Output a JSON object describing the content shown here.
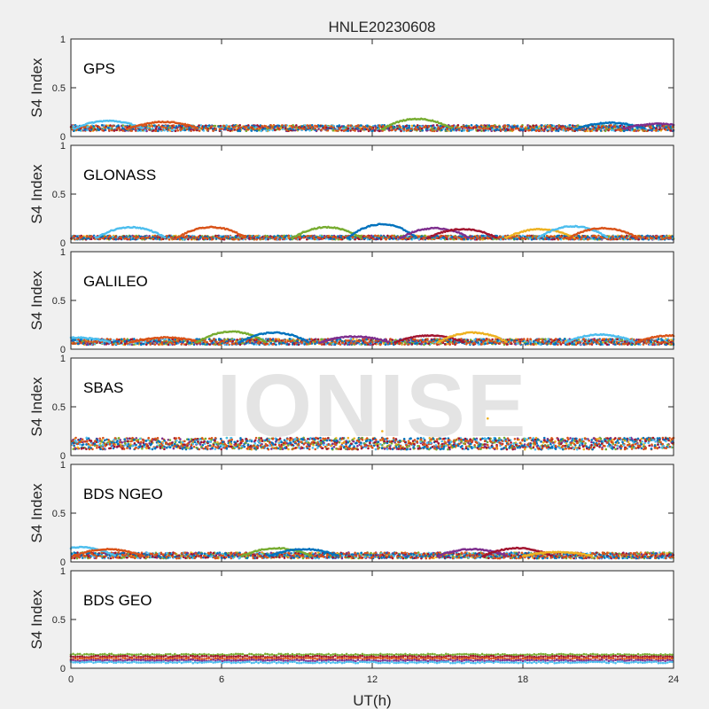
{
  "figure": {
    "title": "HNLE20230608",
    "xlabel": "UT(h)",
    "watermark": "IONISE",
    "background": "#f0f0f0"
  },
  "chart_data": [
    {
      "type": "scatter",
      "label": "GPS",
      "ylabel": "S4 Index",
      "xlim": [
        0,
        24
      ],
      "ylim": [
        0,
        1
      ],
      "xticks": [
        0,
        6,
        12,
        18,
        24
      ],
      "yticks": [
        0,
        0.5,
        1
      ],
      "baseline": 0.08,
      "spread": 0.03,
      "arcs": [
        [
          1.5,
          0.16
        ],
        [
          3.7,
          0.15
        ],
        [
          13.8,
          0.18
        ],
        [
          21.5,
          0.14
        ],
        [
          23.4,
          0.13
        ]
      ]
    },
    {
      "type": "scatter",
      "label": "GLONASS",
      "ylabel": "S4 Index",
      "xlim": [
        0,
        24
      ],
      "ylim": [
        0,
        1
      ],
      "xticks": [
        0,
        6,
        12,
        18,
        24
      ],
      "yticks": [
        0,
        0.5,
        1
      ],
      "baseline": 0.05,
      "spread": 0.02,
      "arcs": [
        [
          2.4,
          0.16
        ],
        [
          5.6,
          0.16
        ],
        [
          10.2,
          0.16
        ],
        [
          12.4,
          0.19
        ],
        [
          14.5,
          0.15
        ],
        [
          15.6,
          0.14
        ],
        [
          18.7,
          0.14
        ],
        [
          20.0,
          0.17
        ],
        [
          21.2,
          0.15
        ]
      ]
    },
    {
      "type": "scatter",
      "label": "GALILEO",
      "ylabel": "S4 Index",
      "xlim": [
        0,
        24
      ],
      "ylim": [
        0,
        1
      ],
      "xticks": [
        0,
        6,
        12,
        18,
        24
      ],
      "yticks": [
        0,
        0.5,
        1
      ],
      "baseline": 0.07,
      "spread": 0.03,
      "arcs": [
        [
          0.2,
          0.12
        ],
        [
          3.8,
          0.12
        ],
        [
          6.4,
          0.18
        ],
        [
          8.1,
          0.17
        ],
        [
          11.3,
          0.13
        ],
        [
          14.3,
          0.14
        ],
        [
          16.0,
          0.17
        ],
        [
          21.1,
          0.15
        ],
        [
          23.9,
          0.14
        ]
      ]
    },
    {
      "type": "scatter",
      "label": "SBAS",
      "ylabel": "S4 Index",
      "xlim": [
        0,
        24
      ],
      "ylim": [
        0,
        1
      ],
      "xticks": [
        0,
        6,
        12,
        18,
        24
      ],
      "yticks": [
        0,
        0.5,
        1
      ],
      "baseline": 0.11,
      "spread": 0.06,
      "arcs": [],
      "outliers": [
        [
          16.6,
          0.38
        ],
        [
          12.4,
          0.25
        ]
      ]
    },
    {
      "type": "scatter",
      "label": "BDS NGEO",
      "ylabel": "S4 Index",
      "xlim": [
        0,
        24
      ],
      "ylim": [
        0,
        1
      ],
      "xticks": [
        0,
        6,
        12,
        18,
        24
      ],
      "yticks": [
        0,
        0.5,
        1
      ],
      "baseline": 0.06,
      "spread": 0.03,
      "arcs": [
        [
          0.4,
          0.15
        ],
        [
          1.5,
          0.13
        ],
        [
          8.2,
          0.14
        ],
        [
          9.3,
          0.13
        ],
        [
          16.0,
          0.13
        ],
        [
          17.8,
          0.14
        ],
        [
          19.4,
          0.1
        ]
      ]
    },
    {
      "type": "scatter",
      "label": "BDS GEO",
      "ylabel": "S4 Index",
      "xlim": [
        0,
        24
      ],
      "ylim": [
        0,
        1
      ],
      "xticks": [
        0,
        6,
        12,
        18,
        24
      ],
      "yticks": [
        0,
        0.5,
        1
      ],
      "baseline": 0.1,
      "spread": 0.04,
      "bands": [
        0.14,
        0.12,
        0.1,
        0.08,
        0.06
      ]
    }
  ],
  "colors": [
    "#0072BD",
    "#D95319",
    "#EDB120",
    "#7E2F8E",
    "#77AC30",
    "#4DBEEE",
    "#A2142F"
  ]
}
